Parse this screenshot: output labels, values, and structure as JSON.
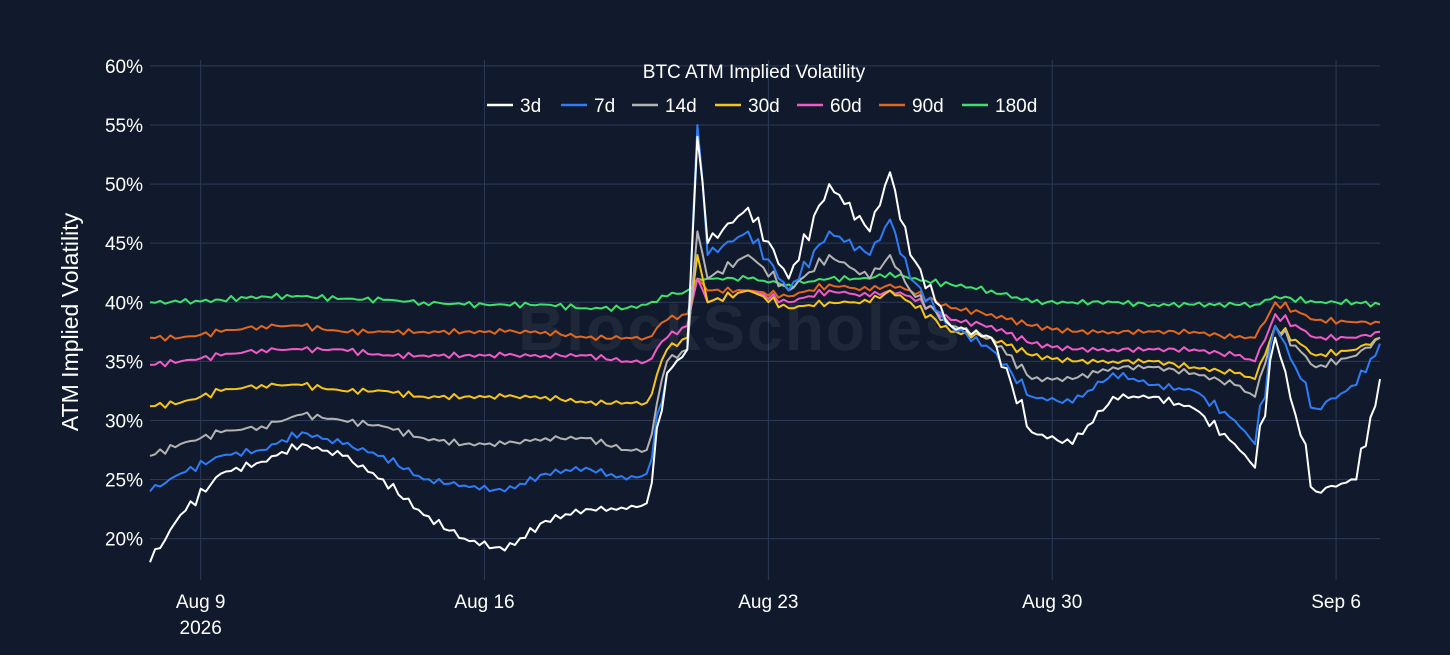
{
  "chart_data": {
    "type": "line",
    "title": "BTC ATM Implied Volatility",
    "ylabel": "ATM Implied Volatility",
    "xlabel": "",
    "watermark": "BlockScholes",
    "y_ticks": [
      "20%",
      "25%",
      "30%",
      "35%",
      "40%",
      "45%",
      "50%",
      "55%",
      "60%"
    ],
    "y_tick_values": [
      20,
      25,
      30,
      35,
      40,
      45,
      50,
      55,
      60
    ],
    "ylim": [
      16.5,
      60.5
    ],
    "x_range_days": [
      "2026-08-07 18:00",
      "2026-09-07 02:00"
    ],
    "x_ticks": [
      {
        "date": "2026-08-09",
        "label": "Aug 9",
        "sublabel": "2026"
      },
      {
        "date": "2026-08-16",
        "label": "Aug 16",
        "sublabel": ""
      },
      {
        "date": "2026-08-23",
        "label": "Aug 23",
        "sublabel": ""
      },
      {
        "date": "2026-08-30",
        "label": "Aug 30",
        "sublabel": ""
      },
      {
        "date": "2026-09-06",
        "label": "Sep 6",
        "sublabel": ""
      }
    ],
    "legend_position": "top-center",
    "grid": true,
    "colors": {
      "background": "#111a2c",
      "grid": "#2b3a57"
    },
    "x": [
      "2026-08-07 18:00",
      "2026-08-08 12:00",
      "2026-08-09 12:00",
      "2026-08-10 12:00",
      "2026-08-11 12:00",
      "2026-08-12 12:00",
      "2026-08-13 12:00",
      "2026-08-14 12:00",
      "2026-08-15 12:00",
      "2026-08-16 12:00",
      "2026-08-17 12:00",
      "2026-08-18 12:00",
      "2026-08-19 12:00",
      "2026-08-20 00:00",
      "2026-08-20 12:00",
      "2026-08-21 00:00",
      "2026-08-21 06:00",
      "2026-08-21 12:00",
      "2026-08-22 12:00",
      "2026-08-23 12:00",
      "2026-08-24 12:00",
      "2026-08-25 12:00",
      "2026-08-26 00:00",
      "2026-08-26 12:00",
      "2026-08-27 12:00",
      "2026-08-28 12:00",
      "2026-08-29 12:00",
      "2026-08-30 12:00",
      "2026-08-31 12:00",
      "2026-09-01 12:00",
      "2026-09-02 12:00",
      "2026-09-03 12:00",
      "2026-09-04 00:00",
      "2026-09-04 12:00",
      "2026-09-05 12:00",
      "2026-09-06 12:00",
      "2026-09-07 02:00"
    ],
    "series": [
      {
        "name": "3d",
        "color": "#ffffff",
        "values": [
          18,
          22,
          25.5,
          26.5,
          28,
          27,
          25,
          22,
          20,
          19,
          21.5,
          22.5,
          22.5,
          23,
          34,
          36,
          54,
          45,
          48,
          42,
          50,
          46,
          51,
          44,
          38,
          37,
          29,
          28,
          32,
          32,
          31,
          28,
          26,
          37,
          24,
          25,
          33.5
        ]
      },
      {
        "name": "7d",
        "color": "#2e7cf6",
        "values": [
          24,
          25.5,
          27,
          27.5,
          29,
          28,
          27,
          25,
          24.5,
          24,
          25.5,
          26,
          25,
          25.5,
          34,
          36,
          55,
          44,
          46,
          41,
          46,
          44,
          47,
          42,
          38,
          36,
          32,
          31.5,
          34,
          33,
          32.5,
          30,
          28,
          38,
          31,
          33,
          36.5
        ]
      },
      {
        "name": "14d",
        "color": "#b3b3b3",
        "values": [
          27,
          28,
          29,
          29.5,
          30.5,
          30,
          29.5,
          28.5,
          28,
          28,
          28.5,
          28.5,
          27.5,
          27.5,
          35,
          36,
          46,
          42,
          44,
          41,
          44,
          42,
          44,
          41,
          38,
          37,
          33.5,
          33.5,
          34.5,
          34.5,
          34,
          33,
          32,
          38,
          34.5,
          35.5,
          37
        ]
      },
      {
        "name": "30d",
        "color": "#f5c518",
        "values": [
          31.2,
          31.5,
          32.5,
          33,
          33,
          32.5,
          32.5,
          32,
          32,
          32,
          32,
          31.5,
          31.5,
          31.5,
          36,
          37,
          44,
          40,
          41,
          39.5,
          40,
          40,
          41,
          40,
          37.5,
          37,
          35.5,
          35,
          35,
          35,
          34.5,
          34,
          33.5,
          38,
          35.5,
          36,
          37
        ]
      },
      {
        "name": "60d",
        "color": "#f25ac8",
        "values": [
          34.7,
          35,
          35.5,
          36,
          36,
          36,
          35.5,
          35.5,
          35.5,
          35.5,
          35.5,
          35.5,
          35,
          35,
          37,
          38,
          42,
          40,
          41,
          40,
          41,
          40.5,
          41,
          40.5,
          38.5,
          38,
          36.5,
          36,
          36,
          36,
          36,
          35.5,
          35,
          39,
          37,
          37,
          37.5
        ]
      },
      {
        "name": "90d",
        "color": "#e3671c",
        "values": [
          37,
          37,
          37.5,
          38,
          38,
          37.5,
          37.5,
          37.5,
          37.5,
          37.5,
          37.5,
          37,
          37,
          37,
          38.5,
          39,
          42,
          41,
          41,
          40.5,
          41.5,
          41,
          41.5,
          41,
          39.5,
          39,
          38,
          37.5,
          37.5,
          37.5,
          37.5,
          37,
          37,
          40,
          38.5,
          38.3,
          38.3
        ]
      },
      {
        "name": "180d",
        "color": "#3ee26a",
        "values": [
          40,
          40,
          40.2,
          40.5,
          40.5,
          40.3,
          40.2,
          40,
          39.8,
          39.8,
          39.8,
          39.5,
          39.5,
          39.8,
          40.5,
          41,
          42,
          42,
          42,
          41.5,
          42,
          42,
          42.5,
          42,
          41.5,
          41,
          40,
          40,
          40,
          39.8,
          39.8,
          39.8,
          39.8,
          40.5,
          40,
          40,
          39.8
        ]
      }
    ]
  }
}
